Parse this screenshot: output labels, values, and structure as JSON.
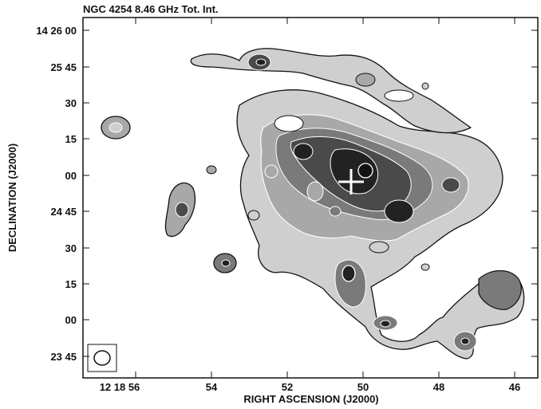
{
  "title": "NGC 4254  8.46 GHz Tot. Int.",
  "xlabel": "RIGHT ASCENSION (J2000)",
  "ylabel": "DECLINATION (J2000)",
  "ra_ticks": [
    "12 18 56",
    "54",
    "52",
    "50",
    "48",
    "46"
  ],
  "dec_ticks": [
    "14 26 00",
    "25 45",
    "30",
    "15",
    "00",
    "24 45",
    "30",
    "15",
    "00",
    "23 45"
  ],
  "colors": {
    "frame": "#111111",
    "contour_dark": "#111111",
    "contour_light": "#ffffff",
    "level1": "#cfcfcf",
    "level2": "#a8a8a8",
    "level3": "#7a7a7a",
    "level4": "#4a4a4a",
    "level5": "#222222"
  }
}
